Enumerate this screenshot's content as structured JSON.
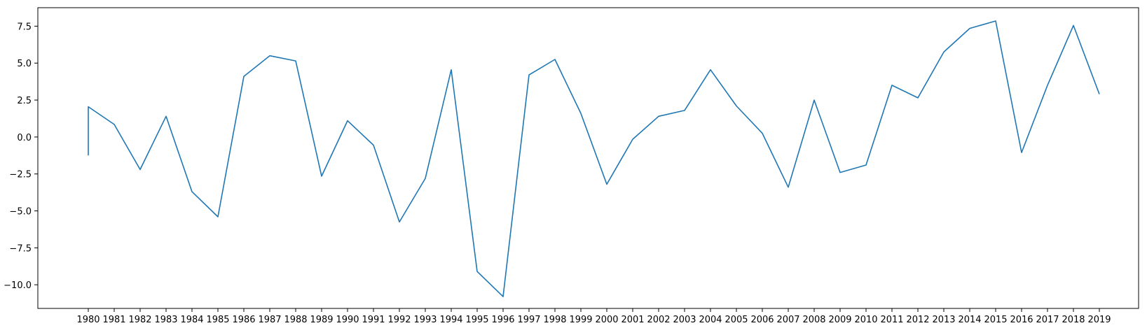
{
  "chart_data": {
    "type": "line",
    "title": "",
    "xlabel": "",
    "ylabel": "",
    "x": [
      "1980",
      "1980",
      "1981",
      "1982",
      "1983",
      "1984",
      "1985",
      "1986",
      "1987",
      "1988",
      "1989",
      "1990",
      "1991",
      "1992",
      "1993",
      "1994",
      "1995",
      "1996",
      "1997",
      "1998",
      "1999",
      "2000",
      "2001",
      "2002",
      "2003",
      "2004",
      "2005",
      "2006",
      "2007",
      "2008",
      "2009",
      "2010",
      "2011",
      "2012",
      "2013",
      "2014",
      "2015",
      "2016",
      "2017",
      "2018",
      "2019"
    ],
    "series": [
      {
        "color": "#1f77b4",
        "values": [
          -1.25,
          2.05,
          0.85,
          -2.2,
          1.4,
          -3.7,
          -5.4,
          4.1,
          5.5,
          5.15,
          -2.65,
          1.1,
          -0.55,
          -5.75,
          -2.8,
          4.55,
          -9.1,
          -10.8,
          4.2,
          5.25,
          1.6,
          -3.2,
          -0.15,
          1.4,
          1.8,
          4.55,
          2.1,
          0.25,
          -3.4,
          2.5,
          -2.4,
          -1.9,
          3.5,
          2.65,
          5.75,
          7.35,
          7.85,
          -1.05,
          3.5,
          7.55,
          2.9
        ]
      }
    ],
    "x_ticks": [
      "1980",
      "1981",
      "1982",
      "1983",
      "1984",
      "1985",
      "1986",
      "1987",
      "1988",
      "1989",
      "1990",
      "1991",
      "1992",
      "1993",
      "1994",
      "1995",
      "1996",
      "1997",
      "1998",
      "1999",
      "2000",
      "2001",
      "2002",
      "2003",
      "2004",
      "2005",
      "2006",
      "2007",
      "2008",
      "2009",
      "2010",
      "2011",
      "2012",
      "2013",
      "2014",
      "2015",
      "2016",
      "2017",
      "2018",
      "2019"
    ],
    "y_ticks": [
      7.5,
      5.0,
      2.5,
      0.0,
      -2.5,
      -5.0,
      -7.5,
      -10.0
    ],
    "y_tick_labels": [
      "7.5",
      "5.0",
      "2.5",
      "0.0",
      "−2.5",
      "−5.0",
      "−7.5",
      "−10.0"
    ],
    "ylim": [
      -11.6,
      8.75
    ],
    "grid": false,
    "legend": "none"
  }
}
